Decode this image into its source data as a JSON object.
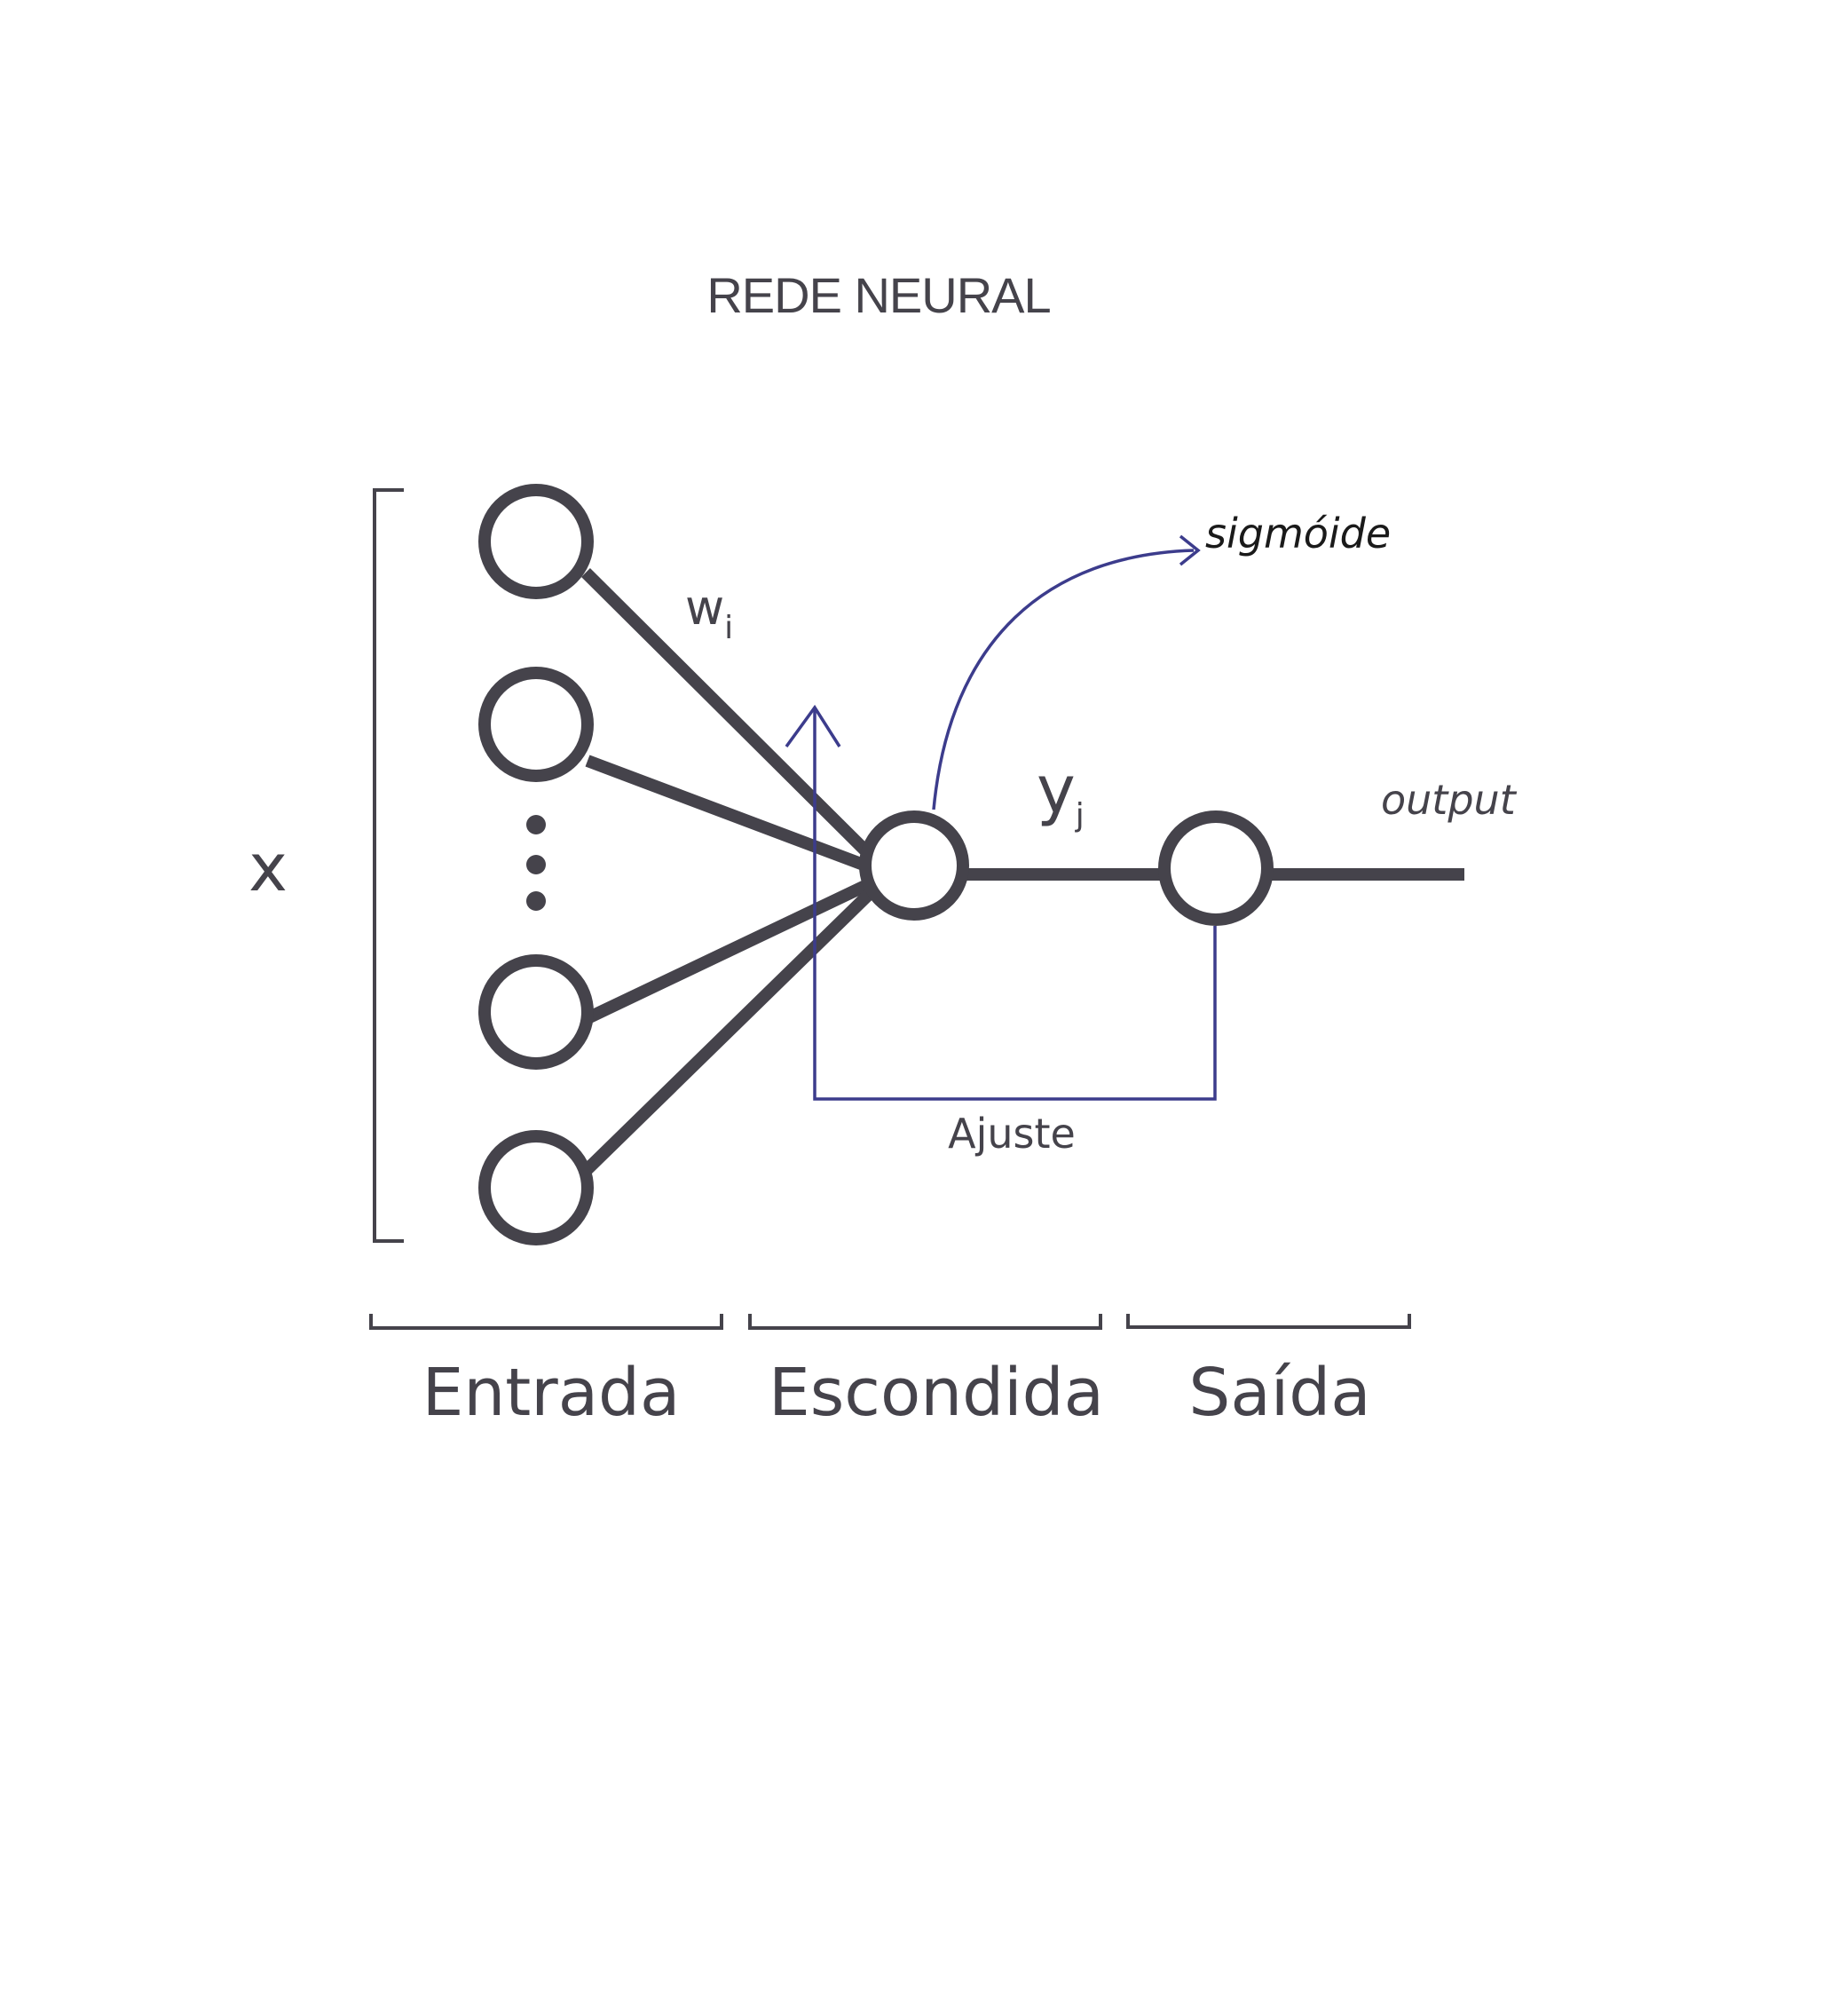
{
  "title": "REDE NEURAL",
  "labels": {
    "x": "x",
    "weight": "w",
    "weight_sub": "i",
    "yj": "y",
    "yj_sub": "j",
    "sigmoid": "sigmóide",
    "output": "output",
    "adjust": "Ajuste"
  },
  "layers": [
    "Entrada",
    "Escondida",
    "Saída"
  ],
  "colors": {
    "ink": "#45434b",
    "feedback": "#3c3c8c"
  }
}
